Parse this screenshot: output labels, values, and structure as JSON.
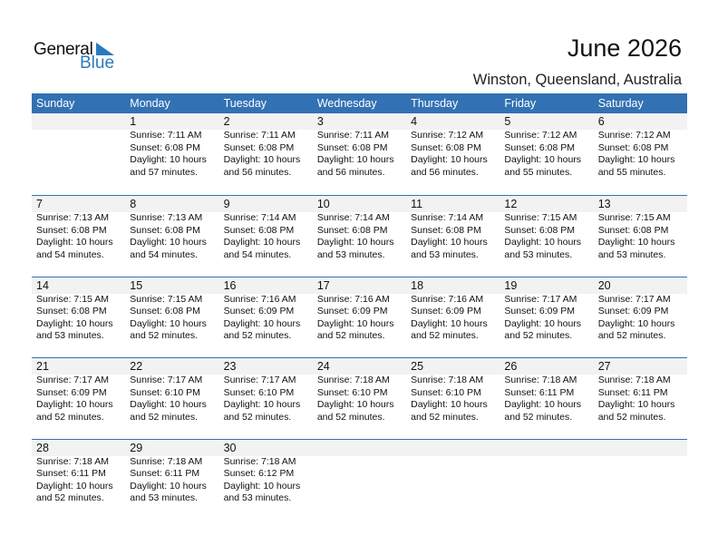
{
  "logo": {
    "line1": "General",
    "line2": "Blue",
    "accent": "#2a7ac0"
  },
  "header": {
    "title": "June 2026",
    "location": "Winston, Queensland, Australia"
  },
  "colors": {
    "header_bg": "#3271b3",
    "day_strip": "#f2f2f2"
  },
  "weekdays": [
    "Sunday",
    "Monday",
    "Tuesday",
    "Wednesday",
    "Thursday",
    "Friday",
    "Saturday"
  ],
  "weeks": [
    [
      null,
      {
        "day": "1",
        "sunrise": "Sunrise: 7:11 AM",
        "sunset": "Sunset: 6:08 PM",
        "daylight1": "Daylight: 10 hours",
        "daylight2": "and 57 minutes."
      },
      {
        "day": "2",
        "sunrise": "Sunrise: 7:11 AM",
        "sunset": "Sunset: 6:08 PM",
        "daylight1": "Daylight: 10 hours",
        "daylight2": "and 56 minutes."
      },
      {
        "day": "3",
        "sunrise": "Sunrise: 7:11 AM",
        "sunset": "Sunset: 6:08 PM",
        "daylight1": "Daylight: 10 hours",
        "daylight2": "and 56 minutes."
      },
      {
        "day": "4",
        "sunrise": "Sunrise: 7:12 AM",
        "sunset": "Sunset: 6:08 PM",
        "daylight1": "Daylight: 10 hours",
        "daylight2": "and 56 minutes."
      },
      {
        "day": "5",
        "sunrise": "Sunrise: 7:12 AM",
        "sunset": "Sunset: 6:08 PM",
        "daylight1": "Daylight: 10 hours",
        "daylight2": "and 55 minutes."
      },
      {
        "day": "6",
        "sunrise": "Sunrise: 7:12 AM",
        "sunset": "Sunset: 6:08 PM",
        "daylight1": "Daylight: 10 hours",
        "daylight2": "and 55 minutes."
      }
    ],
    [
      {
        "day": "7",
        "sunrise": "Sunrise: 7:13 AM",
        "sunset": "Sunset: 6:08 PM",
        "daylight1": "Daylight: 10 hours",
        "daylight2": "and 54 minutes."
      },
      {
        "day": "8",
        "sunrise": "Sunrise: 7:13 AM",
        "sunset": "Sunset: 6:08 PM",
        "daylight1": "Daylight: 10 hours",
        "daylight2": "and 54 minutes."
      },
      {
        "day": "9",
        "sunrise": "Sunrise: 7:14 AM",
        "sunset": "Sunset: 6:08 PM",
        "daylight1": "Daylight: 10 hours",
        "daylight2": "and 54 minutes."
      },
      {
        "day": "10",
        "sunrise": "Sunrise: 7:14 AM",
        "sunset": "Sunset: 6:08 PM",
        "daylight1": "Daylight: 10 hours",
        "daylight2": "and 53 minutes."
      },
      {
        "day": "11",
        "sunrise": "Sunrise: 7:14 AM",
        "sunset": "Sunset: 6:08 PM",
        "daylight1": "Daylight: 10 hours",
        "daylight2": "and 53 minutes."
      },
      {
        "day": "12",
        "sunrise": "Sunrise: 7:15 AM",
        "sunset": "Sunset: 6:08 PM",
        "daylight1": "Daylight: 10 hours",
        "daylight2": "and 53 minutes."
      },
      {
        "day": "13",
        "sunrise": "Sunrise: 7:15 AM",
        "sunset": "Sunset: 6:08 PM",
        "daylight1": "Daylight: 10 hours",
        "daylight2": "and 53 minutes."
      }
    ],
    [
      {
        "day": "14",
        "sunrise": "Sunrise: 7:15 AM",
        "sunset": "Sunset: 6:08 PM",
        "daylight1": "Daylight: 10 hours",
        "daylight2": "and 53 minutes."
      },
      {
        "day": "15",
        "sunrise": "Sunrise: 7:15 AM",
        "sunset": "Sunset: 6:08 PM",
        "daylight1": "Daylight: 10 hours",
        "daylight2": "and 52 minutes."
      },
      {
        "day": "16",
        "sunrise": "Sunrise: 7:16 AM",
        "sunset": "Sunset: 6:09 PM",
        "daylight1": "Daylight: 10 hours",
        "daylight2": "and 52 minutes."
      },
      {
        "day": "17",
        "sunrise": "Sunrise: 7:16 AM",
        "sunset": "Sunset: 6:09 PM",
        "daylight1": "Daylight: 10 hours",
        "daylight2": "and 52 minutes."
      },
      {
        "day": "18",
        "sunrise": "Sunrise: 7:16 AM",
        "sunset": "Sunset: 6:09 PM",
        "daylight1": "Daylight: 10 hours",
        "daylight2": "and 52 minutes."
      },
      {
        "day": "19",
        "sunrise": "Sunrise: 7:17 AM",
        "sunset": "Sunset: 6:09 PM",
        "daylight1": "Daylight: 10 hours",
        "daylight2": "and 52 minutes."
      },
      {
        "day": "20",
        "sunrise": "Sunrise: 7:17 AM",
        "sunset": "Sunset: 6:09 PM",
        "daylight1": "Daylight: 10 hours",
        "daylight2": "and 52 minutes."
      }
    ],
    [
      {
        "day": "21",
        "sunrise": "Sunrise: 7:17 AM",
        "sunset": "Sunset: 6:09 PM",
        "daylight1": "Daylight: 10 hours",
        "daylight2": "and 52 minutes."
      },
      {
        "day": "22",
        "sunrise": "Sunrise: 7:17 AM",
        "sunset": "Sunset: 6:10 PM",
        "daylight1": "Daylight: 10 hours",
        "daylight2": "and 52 minutes."
      },
      {
        "day": "23",
        "sunrise": "Sunrise: 7:17 AM",
        "sunset": "Sunset: 6:10 PM",
        "daylight1": "Daylight: 10 hours",
        "daylight2": "and 52 minutes."
      },
      {
        "day": "24",
        "sunrise": "Sunrise: 7:18 AM",
        "sunset": "Sunset: 6:10 PM",
        "daylight1": "Daylight: 10 hours",
        "daylight2": "and 52 minutes."
      },
      {
        "day": "25",
        "sunrise": "Sunrise: 7:18 AM",
        "sunset": "Sunset: 6:10 PM",
        "daylight1": "Daylight: 10 hours",
        "daylight2": "and 52 minutes."
      },
      {
        "day": "26",
        "sunrise": "Sunrise: 7:18 AM",
        "sunset": "Sunset: 6:11 PM",
        "daylight1": "Daylight: 10 hours",
        "daylight2": "and 52 minutes."
      },
      {
        "day": "27",
        "sunrise": "Sunrise: 7:18 AM",
        "sunset": "Sunset: 6:11 PM",
        "daylight1": "Daylight: 10 hours",
        "daylight2": "and 52 minutes."
      }
    ],
    [
      {
        "day": "28",
        "sunrise": "Sunrise: 7:18 AM",
        "sunset": "Sunset: 6:11 PM",
        "daylight1": "Daylight: 10 hours",
        "daylight2": "and 52 minutes."
      },
      {
        "day": "29",
        "sunrise": "Sunrise: 7:18 AM",
        "sunset": "Sunset: 6:11 PM",
        "daylight1": "Daylight: 10 hours",
        "daylight2": "and 53 minutes."
      },
      {
        "day": "30",
        "sunrise": "Sunrise: 7:18 AM",
        "sunset": "Sunset: 6:12 PM",
        "daylight1": "Daylight: 10 hours",
        "daylight2": "and 53 minutes."
      },
      null,
      null,
      null,
      null
    ]
  ]
}
